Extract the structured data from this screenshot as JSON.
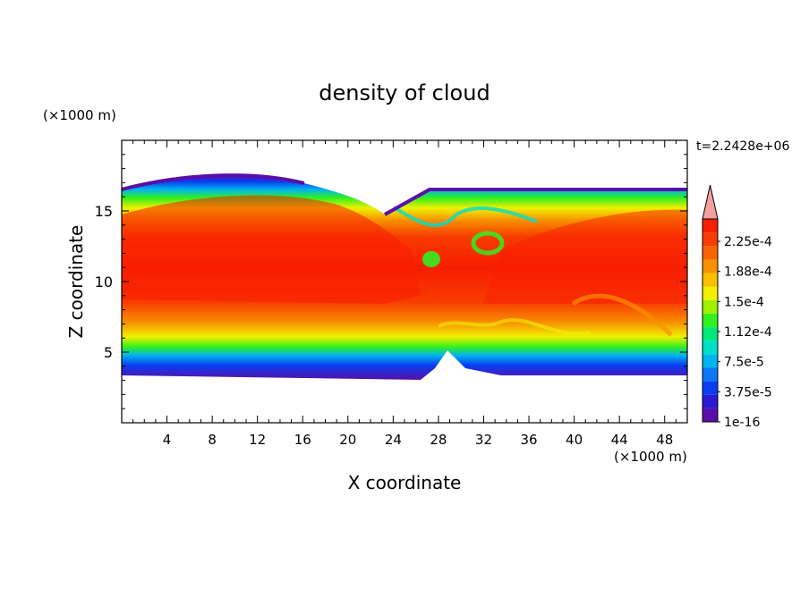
{
  "chart_data": {
    "type": "heatmap",
    "title": "density of cloud",
    "xlabel": "X coordinate",
    "ylabel": "Z coordinate",
    "x_unit": "(×1000 m)",
    "y_unit": "(×1000 m)",
    "time_label": "t=2.2428e+06",
    "xlim": [
      0,
      50
    ],
    "ylim": [
      0,
      20
    ],
    "x_ticks": [
      4,
      8,
      12,
      16,
      20,
      24,
      28,
      32,
      36,
      40,
      44,
      48
    ],
    "y_ticks": [
      5,
      10,
      15
    ],
    "colorbar": {
      "labels": [
        "2.25e-4",
        "1.88e-4",
        "1.5e-4",
        "1.12e-4",
        "7.5e-5",
        "3.75e-5",
        "1e-16"
      ],
      "colors": [
        "#5a0fa8",
        "#2a1bd0",
        "#0a3cf0",
        "#0a78f5",
        "#00b4f0",
        "#00e0c8",
        "#00e878",
        "#30f020",
        "#a0f000",
        "#f0f000",
        "#f8c000",
        "#f89000",
        "#f86400",
        "#f83c00",
        "#f81e00"
      ],
      "overflow_color": "#f4a0a0"
    },
    "field_description_levels": {
      "cloud_base_z": 3.5,
      "cloud_top_z_left": 16.8,
      "cloud_top_z_right": 16.2,
      "core_z_range": [
        7.5,
        14
      ]
    }
  }
}
